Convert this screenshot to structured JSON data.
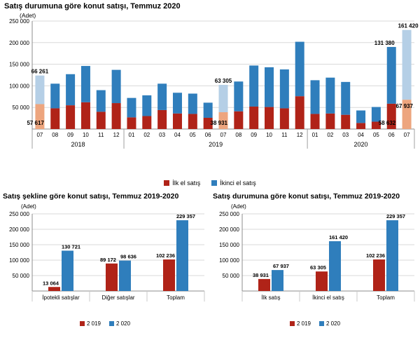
{
  "colors": {
    "red": "#b02318",
    "blue": "#2f7ebc",
    "red_light": "#eda57e",
    "blue_light": "#b5cfe6",
    "grid": "#d9d9d9",
    "axis": "#8c8c8c",
    "separator": "#a0a0a0",
    "text": "#000000"
  },
  "chart_data": [
    {
      "type": "bar",
      "subtype": "stacked",
      "title": "Satış durumuna göre konut satışı, Temmuz 2020",
      "unit": "(Adet)",
      "ylim": [
        0,
        250000
      ],
      "grid": true,
      "legend_position": "bottom",
      "yticks": [
        {
          "v": 50000,
          "label": "50 000"
        },
        {
          "v": 100000,
          "label": "100 000"
        },
        {
          "v": 150000,
          "label": "150 000"
        },
        {
          "v": 200000,
          "label": "200 000"
        },
        {
          "v": 250000,
          "label": "250 000"
        }
      ],
      "months": [
        "07",
        "08",
        "09",
        "10",
        "11",
        "12",
        "01",
        "02",
        "03",
        "04",
        "05",
        "06",
        "07",
        "08",
        "09",
        "10",
        "11",
        "12",
        "01",
        "02",
        "03",
        "04",
        "05",
        "06",
        "07"
      ],
      "year_groups": [
        {
          "label": "2018",
          "count": 6
        },
        {
          "label": "2019",
          "count": 12
        },
        {
          "label": "2020",
          "count": 7
        }
      ],
      "series": [
        {
          "name": "İlk el satış",
          "color_key": "red",
          "values": [
            57617,
            48000,
            55000,
            62000,
            40000,
            60000,
            27000,
            30000,
            44000,
            36000,
            35000,
            26000,
            38931,
            41000,
            52000,
            51000,
            48000,
            76000,
            35000,
            36000,
            33000,
            14000,
            17000,
            58632,
            67937
          ]
        },
        {
          "name": "İkinci el satış",
          "color_key": "blue",
          "values": [
            66261,
            57000,
            72000,
            84000,
            50000,
            77000,
            45000,
            48000,
            61000,
            48000,
            47000,
            35000,
            63305,
            69000,
            95000,
            92000,
            90000,
            126000,
            78000,
            83000,
            76000,
            29000,
            34000,
            131380,
            161420
          ]
        }
      ],
      "highlighted_indices": [
        0,
        12,
        24
      ],
      "annotations": [
        {
          "index": 0,
          "text": "66 261",
          "placement": "above",
          "dx": 0,
          "dy": 0
        },
        {
          "index": 0,
          "text": "57 617",
          "placement": "low",
          "dx": 0,
          "dy": 0
        },
        {
          "index": 12,
          "text": "63 305",
          "placement": "above",
          "dx": 0,
          "dy": 0
        },
        {
          "index": 12,
          "text": "38 931",
          "placement": "low",
          "dx": 0,
          "dy": 0
        },
        {
          "index": 23,
          "text": "131 380",
          "placement": "above",
          "dx": -10,
          "dy": 0
        },
        {
          "index": 23,
          "text": "58 632",
          "placement": "low",
          "dx": 0,
          "dy": 0
        },
        {
          "index": 24,
          "text": "161 420",
          "placement": "above",
          "dx": 2,
          "dy": 0
        },
        {
          "index": 24,
          "text": "67 937",
          "placement": "side",
          "dx": 0,
          "dy": 0
        }
      ],
      "legend": [
        {
          "label": "İlk el satış",
          "color_key": "red"
        },
        {
          "label": "İkinci el satış",
          "color_key": "blue"
        }
      ]
    },
    {
      "type": "bar",
      "subtype": "grouped",
      "title": "Satış şekline göre konut satışı, Temmuz 2019-2020",
      "unit": "(Adet)",
      "ylim": [
        0,
        250000
      ],
      "grid": true,
      "legend_position": "bottom",
      "yticks": [
        {
          "v": 50000,
          "label": "50 000"
        },
        {
          "v": 100000,
          "label": "100 000"
        },
        {
          "v": 150000,
          "label": "150 000"
        },
        {
          "v": 200000,
          "label": "200 000"
        },
        {
          "v": 250000,
          "label": "250 000"
        }
      ],
      "categories": [
        "İpotekli satışlar",
        "Diğer satışlar",
        "Toplam"
      ],
      "series": [
        {
          "name": "2 019",
          "color_key": "red",
          "values": [
            13064,
            89172,
            102236
          ],
          "value_labels": [
            "13 064",
            "89 172",
            "102 236"
          ]
        },
        {
          "name": "2 020",
          "color_key": "blue",
          "values": [
            130721,
            98636,
            229357
          ],
          "value_labels": [
            "130 721",
            "98 636",
            "229 357"
          ]
        }
      ],
      "legend": [
        {
          "label": "2 019",
          "color_key": "red"
        },
        {
          "label": "2 020",
          "color_key": "blue"
        }
      ]
    },
    {
      "type": "bar",
      "subtype": "grouped",
      "title": "Satış durumuna göre konut satışı, Temmuz 2019-2020",
      "unit": "(Adet)",
      "ylim": [
        0,
        250000
      ],
      "grid": true,
      "legend_position": "bottom",
      "yticks": [
        {
          "v": 50000,
          "label": "50 000"
        },
        {
          "v": 100000,
          "label": "100 000"
        },
        {
          "v": 150000,
          "label": "150 000"
        },
        {
          "v": 200000,
          "label": "200 000"
        },
        {
          "v": 250000,
          "label": "250 000"
        }
      ],
      "categories": [
        "İlk satış",
        "İkinci el satış",
        "Toplam"
      ],
      "series": [
        {
          "name": "2 019",
          "color_key": "red",
          "values": [
            38931,
            63305,
            102236
          ],
          "value_labels": [
            "38 931",
            "63 305",
            "102 236"
          ]
        },
        {
          "name": "2 020",
          "color_key": "blue",
          "values": [
            67937,
            161420,
            229357
          ],
          "value_labels": [
            "67 937",
            "161 420",
            "229 357"
          ]
        }
      ],
      "legend": [
        {
          "label": "2 019",
          "color_key": "red"
        },
        {
          "label": "2 020",
          "color_key": "blue"
        }
      ]
    }
  ]
}
